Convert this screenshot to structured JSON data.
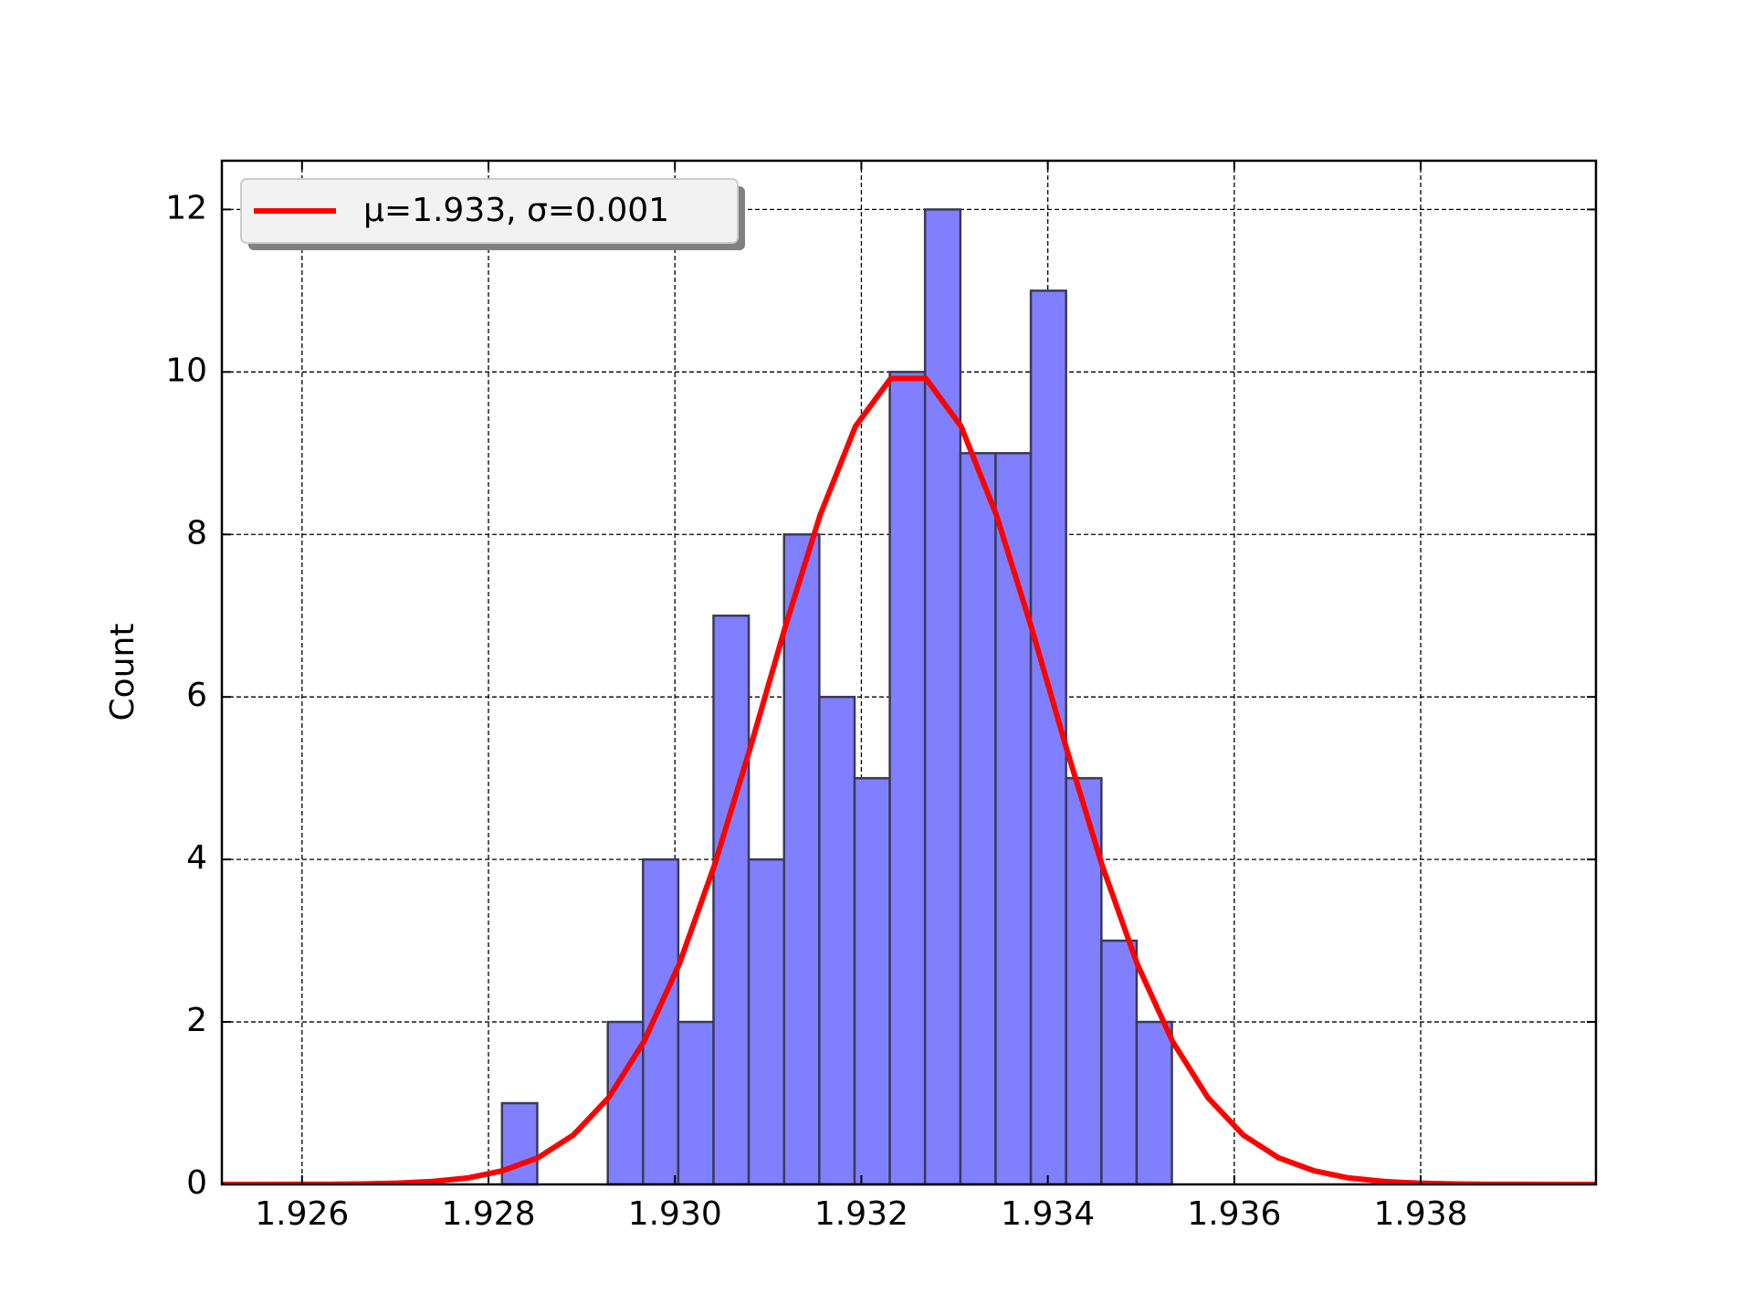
{
  "chart_data": {
    "type": "histogram",
    "ylabel": "Count",
    "bins": [
      1.928145,
      1.928523,
      1.928901,
      1.92928,
      1.929658,
      1.930036,
      1.930414,
      1.930792,
      1.931171,
      1.931549,
      1.931927,
      1.932305,
      1.932683,
      1.933062,
      1.93344,
      1.933818,
      1.934196,
      1.934575,
      1.934953,
      1.935331
    ],
    "counts": [
      1,
      0,
      0,
      2,
      4,
      2,
      7,
      4,
      8,
      6,
      5,
      10,
      12,
      9,
      9,
      11,
      5,
      3,
      2
    ],
    "color": "#8080ff",
    "edgecolor": "#3a3a5a",
    "line": {
      "name": "μ=1.933, σ=0.001",
      "color": "#ff0000",
      "x": [
        1.925132,
        1.92551,
        1.925888,
        1.926266,
        1.926644,
        1.927022,
        1.9274,
        1.927778,
        1.928156,
        1.928534,
        1.928912,
        1.92929,
        1.929668,
        1.930046,
        1.930424,
        1.930802,
        1.93118,
        1.931558,
        1.931936,
        1.932314,
        1.932692,
        1.93307,
        1.933448,
        1.933826,
        1.934204,
        1.934582,
        1.93496,
        1.935338,
        1.935716,
        1.936094,
        1.936472,
        1.93685,
        1.937228,
        1.937606,
        1.937984,
        1.938362,
        1.93874,
        1.939118,
        1.939496,
        1.939874
      ],
      "values": [
        0,
        0,
        0.001,
        0.002,
        0.006,
        0.015,
        0.036,
        0.08,
        0.17,
        0.33,
        0.61,
        1.07,
        1.76,
        2.71,
        3.93,
        5.35,
        6.85,
        8.24,
        9.33,
        9.92,
        9.92,
        9.33,
        8.24,
        6.85,
        5.35,
        3.93,
        2.71,
        1.76,
        1.07,
        0.61,
        0.33,
        0.17,
        0.08,
        0.036,
        0.015,
        0.006,
        0.002,
        0.001,
        0,
        0
      ]
    },
    "xlim": [
      1.92514,
      1.93988
    ],
    "ylim": [
      0,
      12.6
    ],
    "xticks": [
      1.926,
      1.928,
      {
        "value": 1.93,
        "label": "1.930"
      },
      1.932,
      1.934,
      1.936,
      1.938
    ],
    "yticks": [
      0,
      2,
      4,
      6,
      8,
      10,
      12
    ],
    "grid": true,
    "legend": "upper left"
  }
}
